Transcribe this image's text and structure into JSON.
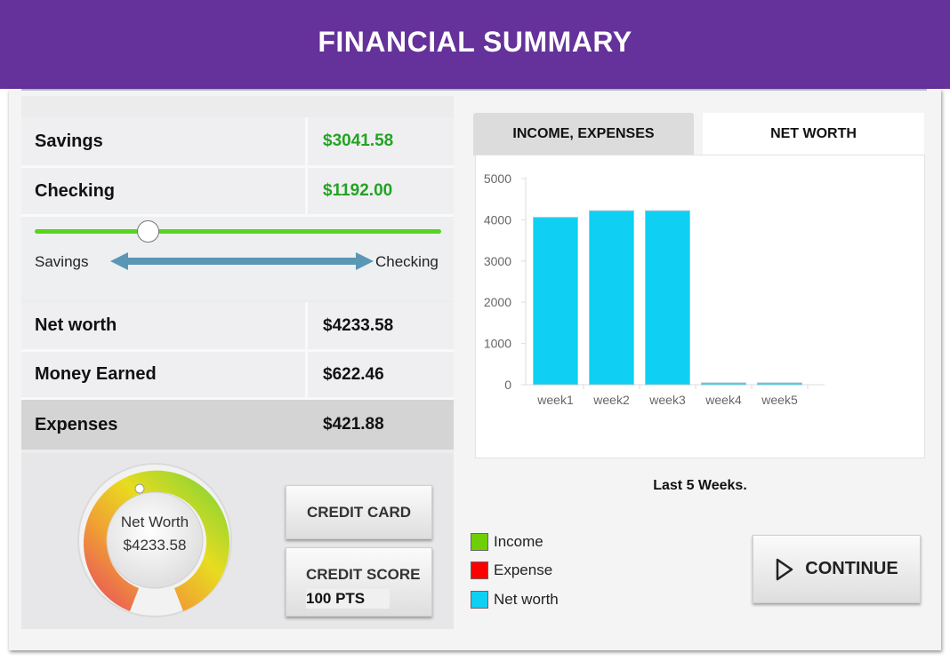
{
  "header": {
    "title": "FINANCIAL SUMMARY"
  },
  "accounts": {
    "savings_label": "Savings",
    "savings_value": "$3041.58",
    "checking_label": "Checking",
    "checking_value": "$1192.00"
  },
  "transfer": {
    "left_label": "Savings",
    "right_label": "Checking",
    "slider_position": 0.28
  },
  "summary": {
    "net_worth_label": "Net worth",
    "net_worth_value": "$4233.58",
    "money_earned_label": "Money Earned",
    "money_earned_value": "$622.46",
    "expenses_label": "Expenses",
    "expenses_value": "$421.88"
  },
  "gauge": {
    "label": "Net Worth",
    "value": "$4233.58"
  },
  "buttons": {
    "credit_card": "CREDIT CARD",
    "credit_score_title": "CREDIT SCORE",
    "credit_score_value": "100 PTS",
    "continue": "CONTINUE"
  },
  "tabs": {
    "income_expenses": "INCOME, EXPENSES",
    "net_worth": "NET WORTH"
  },
  "chart_caption": "Last 5 Weeks.",
  "legend": [
    {
      "label": "Income",
      "color": "#6ecf07"
    },
    {
      "label": "Expense",
      "color": "#ff0000"
    },
    {
      "label": "Net worth",
      "color": "#0fcff2"
    }
  ],
  "chart_data": {
    "type": "bar",
    "categories": [
      "week1",
      "week2",
      "week3",
      "week4",
      "week5"
    ],
    "values": [
      4060,
      4220,
      4220,
      0,
      0
    ],
    "ylim": [
      0,
      5000
    ],
    "yticks": [
      0,
      1000,
      2000,
      3000,
      4000,
      5000
    ],
    "bar_color": "#0fcff2",
    "grid": false
  }
}
